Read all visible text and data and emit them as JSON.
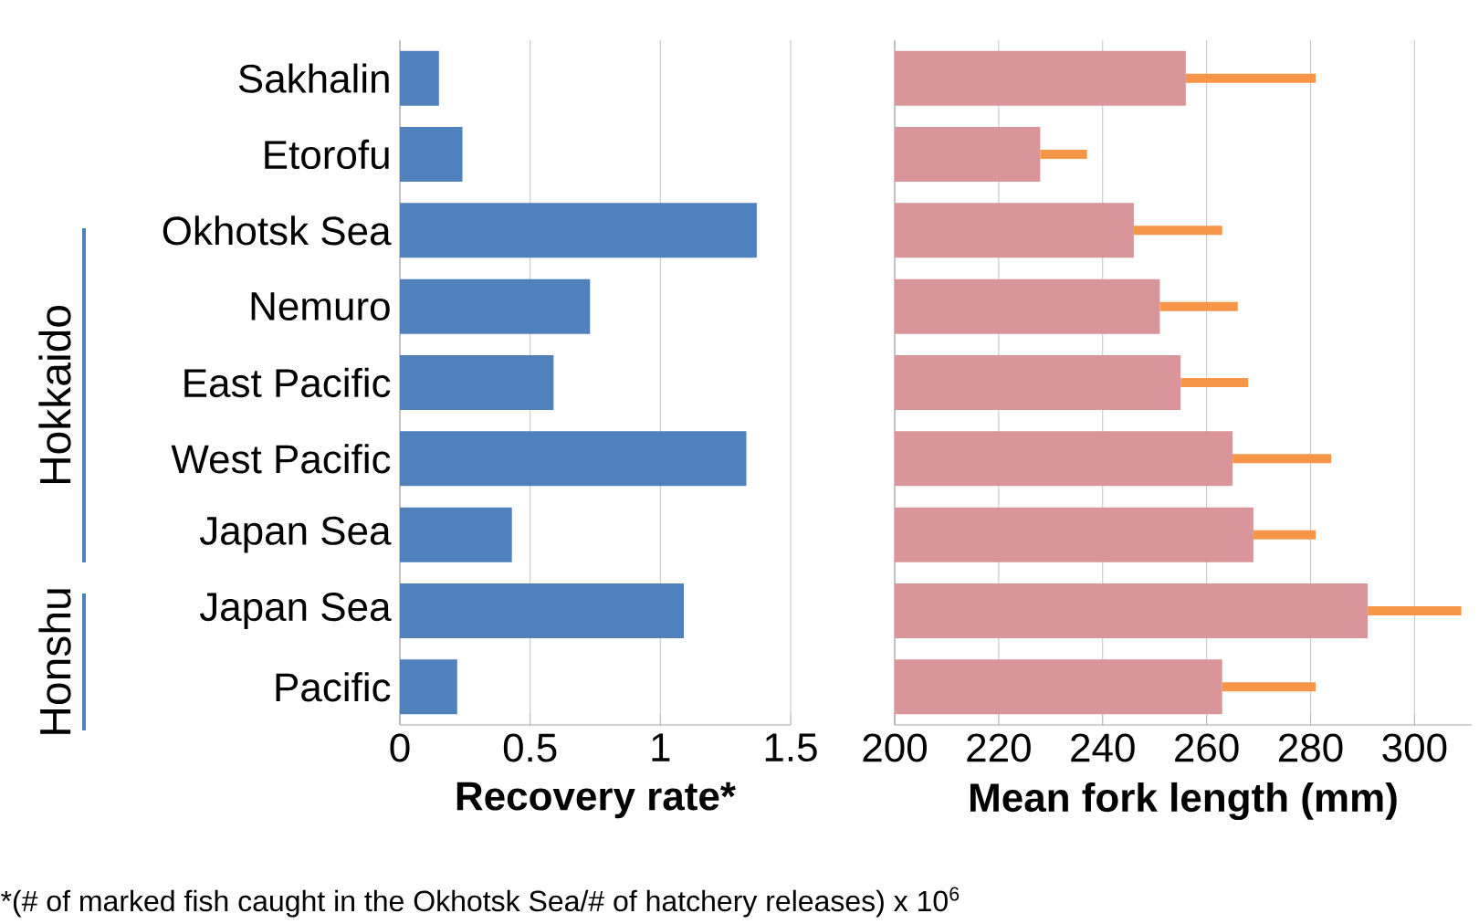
{
  "chart_data": [
    {
      "type": "bar",
      "orientation": "horizontal",
      "xlabel": "Recovery rate*",
      "categories": [
        "Sakhalin",
        "Etorofu",
        "Okhotsk Sea",
        "Nemuro",
        "East Pacific",
        "West Pacific",
        "Japan Sea",
        "Japan Sea",
        "Pacific"
      ],
      "values": [
        0.15,
        0.24,
        1.37,
        0.73,
        0.59,
        1.33,
        0.43,
        1.09,
        0.22
      ],
      "color": "#4f81bd",
      "xlim": [
        0,
        1.5
      ],
      "xticks": [
        0,
        0.5,
        1,
        1.5
      ],
      "grid": "x",
      "annotations": [
        "Hokkaido",
        "Honshu",
        "*(# of marked fish caught in the Okhotsk Sea/# of hatchery releases) x 10$^{6}$"
      ]
    },
    {
      "type": "bar",
      "orientation": "horizontal",
      "xlabel": "Mean fork length (mm)",
      "categories": [
        null,
        null,
        null,
        null,
        null,
        null,
        null,
        null,
        null
      ],
      "values": [
        256,
        228,
        246,
        251,
        255,
        265,
        269,
        291,
        263
      ],
      "errors": [
        [
          256,
          281
        ],
        [
          228,
          237
        ],
        [
          246,
          263
        ],
        [
          251,
          266
        ],
        [
          255,
          268
        ],
        [
          265,
          284
        ],
        [
          269,
          281
        ],
        [
          291,
          309
        ],
        [
          263,
          281
        ]
      ],
      "color": "#d9959a",
      "xlim": [
        200,
        311
      ],
      "xticks": [
        200,
        220,
        240,
        260,
        280,
        300
      ],
      "grid": "x",
      "tick_labels": "x"
    }
  ]
}
